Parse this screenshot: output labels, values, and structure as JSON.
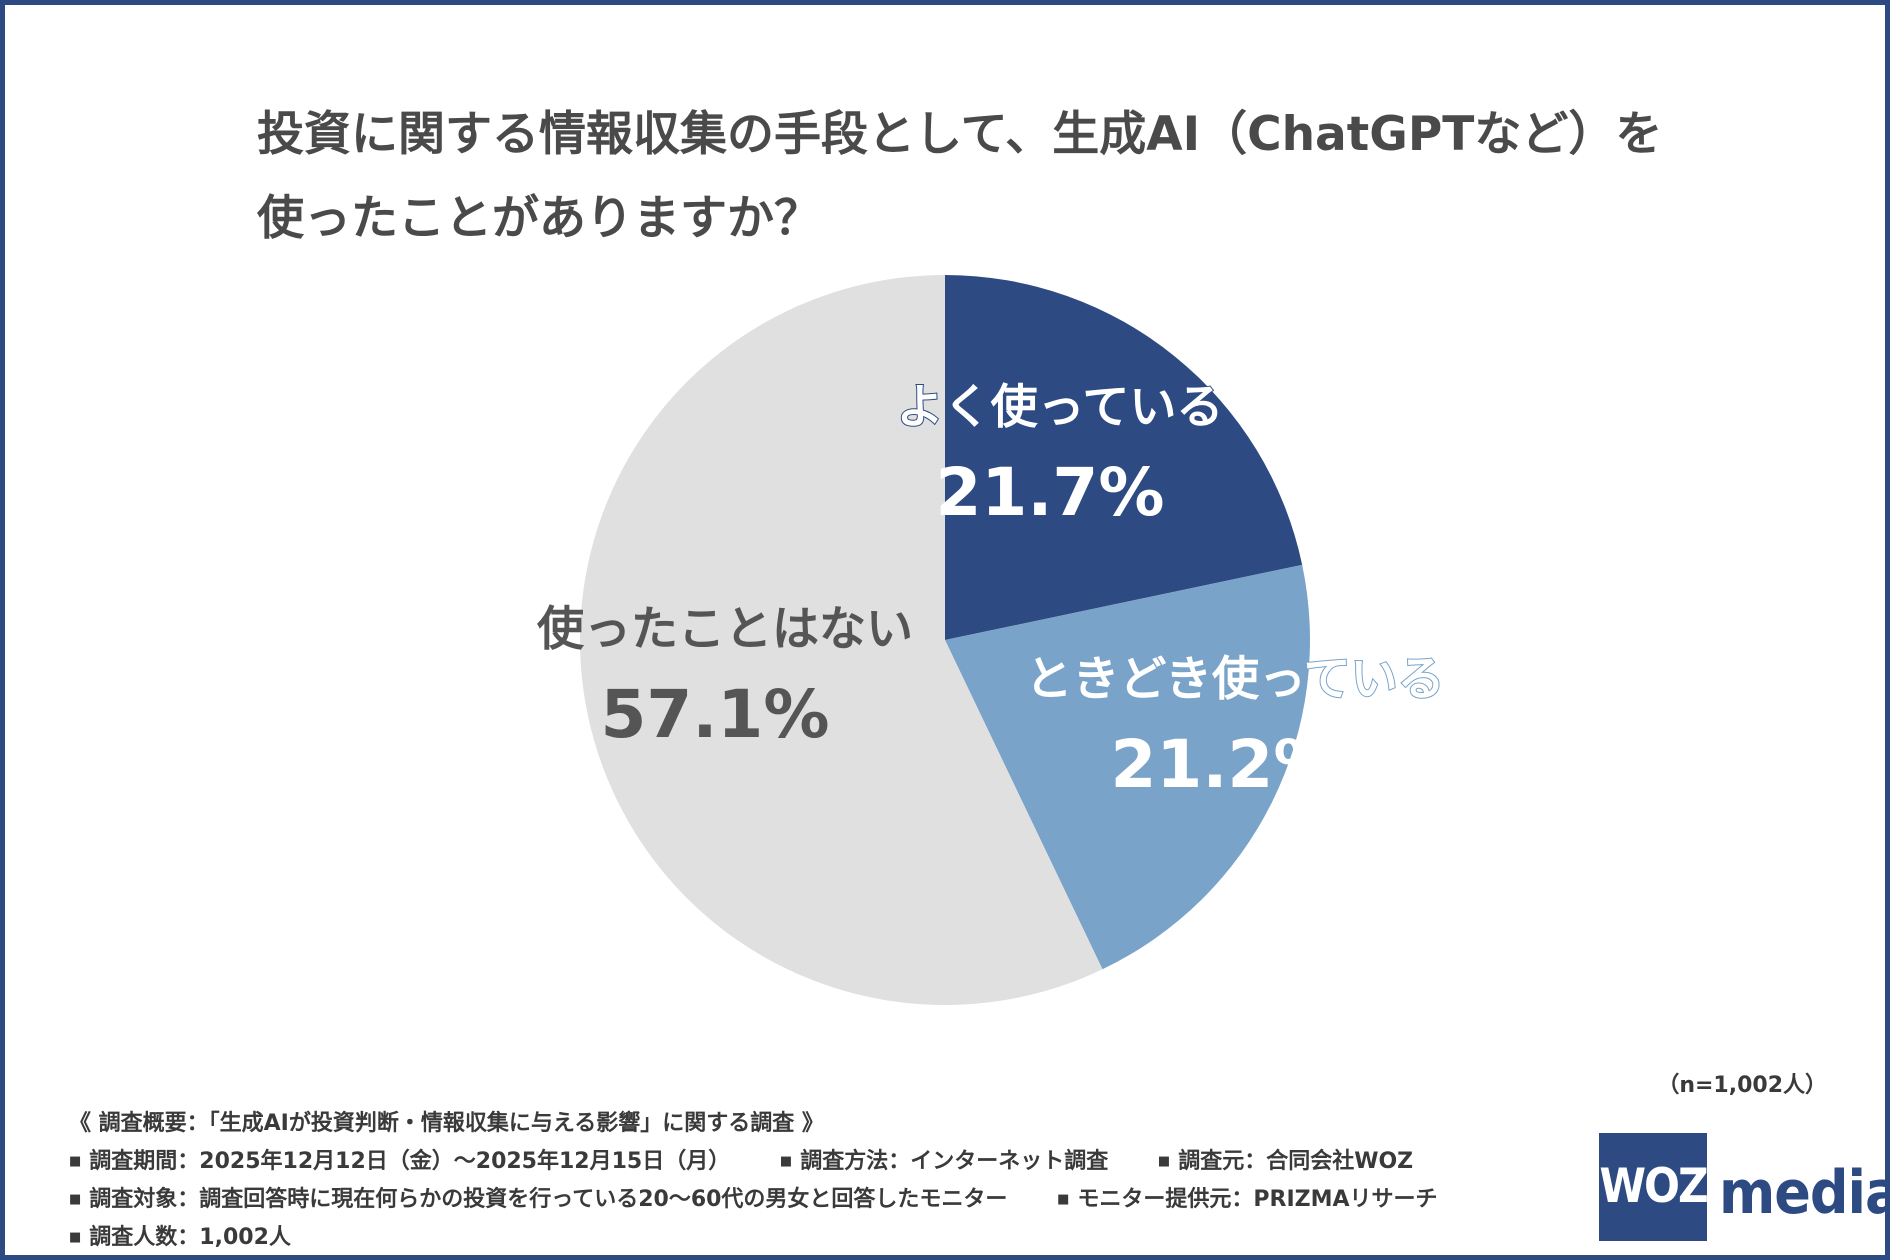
{
  "title_lines": [
    "投資に関する情報収集の手段として、生成AI（ChatGPTなど）を",
    "使ったことがありますか？"
  ],
  "chart_data": {
    "type": "pie",
    "title": "投資に関する情報収集の手段として、生成AI（ChatGPTなど）を使ったことがありますか？",
    "slices": [
      {
        "label": "よく使っている",
        "value": 21.7,
        "display": "21.7%",
        "color": "#2d4b82",
        "label_color": "#ffffff"
      },
      {
        "label": "ときどき使っている",
        "value": 21.2,
        "display": "21.2%",
        "color": "#79a3c8",
        "label_color": "#ffffff"
      },
      {
        "label": "使ったことはない",
        "value": 57.1,
        "display": "57.1%",
        "color": "#e0e0e0",
        "label_color": "#555555"
      }
    ],
    "start_angle": "12 o'clock",
    "direction": "clockwise",
    "legend": "none (labels on slices)"
  },
  "sample_note": "（n=1,002人）",
  "survey": {
    "summary": "《 調査概要：「生成AIが投資判断・情報収集に与える影響」に関する調査 》",
    "bullet": "■",
    "period": "調査期間：2025年12月12日（金）～2025年12月15日（月）",
    "method": "調査方法：インターネット調査",
    "organizer": "調査元：合同会社WOZ",
    "target": "調査対象：調査回答時に現在何らかの投資を行っている20～60代の男女と回答したモニター",
    "provider": "モニター提供元：PRIZMAリサーチ",
    "count": "調査人数：1,002人"
  },
  "logo": {
    "box_text": "WOZ",
    "text": "media",
    "color": "#2d4b82"
  }
}
